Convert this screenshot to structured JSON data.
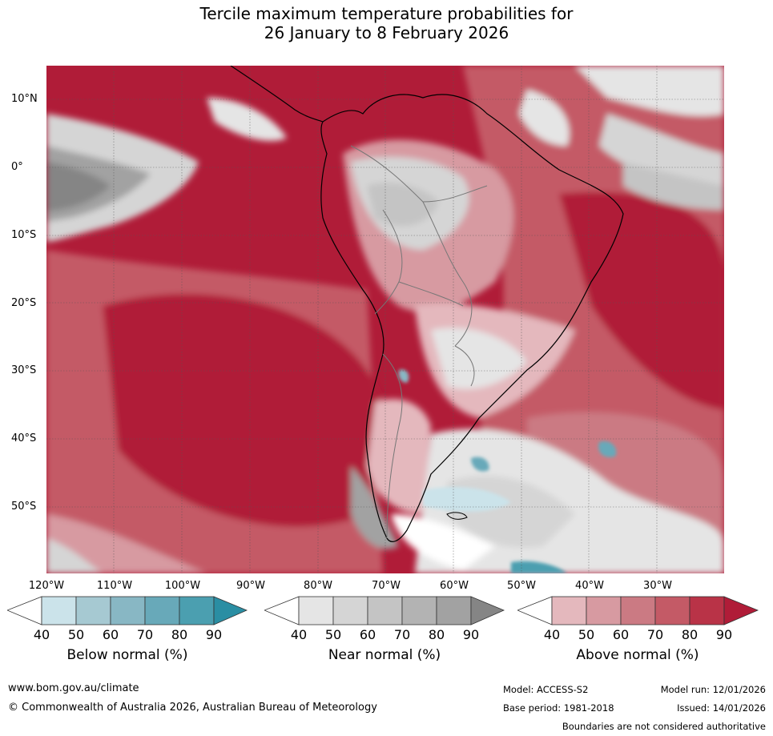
{
  "title": {
    "line1": "Tercile maximum temperature probabilities for",
    "line2": "26 January to 8 February 2026"
  },
  "map": {
    "region": "South America",
    "lat_labels": [
      "10°N",
      "0°",
      "10°S",
      "20°S",
      "30°S",
      "40°S",
      "50°S"
    ],
    "lon_labels": [
      "120°W",
      "110°W",
      "100°W",
      "90°W",
      "80°W",
      "70°W",
      "60°W",
      "50°W",
      "40°W",
      "30°W"
    ]
  },
  "colorbars": [
    {
      "name": "Below normal (%)",
      "ticks": [
        "40",
        "50",
        "60",
        "70",
        "80",
        "90"
      ],
      "colors": [
        "#ffffff",
        "#cbe3ea",
        "#a6c9d2",
        "#88b7c4",
        "#68a9b9",
        "#4b9fb0",
        "#2a8ea3"
      ]
    },
    {
      "name": "Near normal (%)",
      "ticks": [
        "40",
        "50",
        "60",
        "70",
        "80",
        "90"
      ],
      "colors": [
        "#ffffff",
        "#e5e5e5",
        "#d5d5d5",
        "#c4c4c4",
        "#b3b3b3",
        "#a2a2a2",
        "#858585"
      ]
    },
    {
      "name": "Above normal (%)",
      "ticks": [
        "40",
        "50",
        "60",
        "70",
        "80",
        "90"
      ],
      "colors": [
        "#ffffff",
        "#e4b8bd",
        "#d79aa1",
        "#cb7a83",
        "#c45a66",
        "#b93347",
        "#b01c38"
      ]
    }
  ],
  "footer": {
    "website": "www.bom.gov.au/climate",
    "copyright": "© Commonwealth of Australia 2026, Australian Bureau of Meteorology",
    "model": "Model: ACCESS-S2",
    "model_run": "Model run: 12/01/2026",
    "base_period": "Base period: 1981-2018",
    "issued": "Issued: 14/01/2026",
    "disclaimer": "Boundaries are not considered authoritative"
  }
}
